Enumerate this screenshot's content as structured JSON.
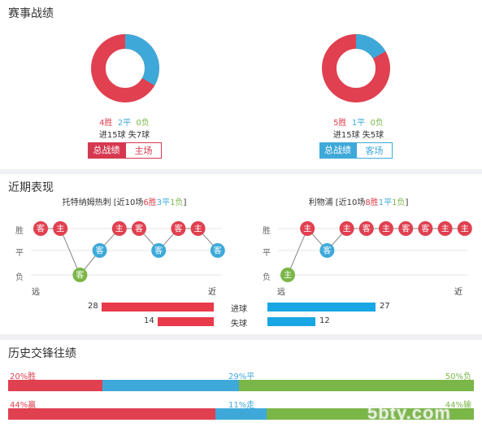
{
  "colors": {
    "win": "#e04050",
    "draw": "#3ea9d9",
    "loss": "#7ab648",
    "bar_red": "#e83a4a",
    "bar_blue": "#19a6e4",
    "tab_red": "#d63850",
    "tab_blue": "#3ea9d9"
  },
  "record": {
    "title": "赛事战绩",
    "left": {
      "win": "4胜",
      "draw": "2平",
      "loss": "0负",
      "goals": "进15球",
      "conceded": "失7球",
      "tab_active": "总战绩",
      "tab_other": "主场",
      "win_count": 4,
      "draw_count": 2,
      "loss_count": 0
    },
    "right": {
      "win": "5胜",
      "draw": "1平",
      "loss": "0负",
      "goals": "进15球",
      "conceded": "失5球",
      "tab_active": "总战绩",
      "tab_other": "客场",
      "win_count": 5,
      "draw_count": 1,
      "loss_count": 0
    }
  },
  "recent": {
    "title": "近期表现",
    "left_header": {
      "team": "托特纳姆热刺",
      "open": " [近10场",
      "win": "6胜",
      "draw": "3平",
      "loss": "1负",
      "close": "]"
    },
    "right_header": {
      "team": "利物浦",
      "open": " [近10场",
      "win": "8胜",
      "draw": "1平",
      "loss": "1负",
      "close": "]"
    },
    "y_labels": {
      "win": "胜",
      "draw": "平",
      "loss": "负"
    },
    "far": "远",
    "near": "近",
    "left_matches": [
      {
        "venue": "客",
        "result": "W"
      },
      {
        "venue": "主",
        "result": "W"
      },
      {
        "venue": "客",
        "result": "L"
      },
      {
        "venue": "客",
        "result": "D"
      },
      {
        "venue": "主",
        "result": "W"
      },
      {
        "venue": "客",
        "result": "W"
      },
      {
        "venue": "客",
        "result": "D"
      },
      {
        "venue": "客",
        "result": "W"
      },
      {
        "venue": "主",
        "result": "W"
      },
      {
        "venue": "客",
        "result": "D"
      }
    ],
    "right_matches": [
      {
        "venue": "主",
        "result": "L"
      },
      {
        "venue": "主",
        "result": "W"
      },
      {
        "venue": "客",
        "result": "D"
      },
      {
        "venue": "主",
        "result": "W"
      },
      {
        "venue": "客",
        "result": "W"
      },
      {
        "venue": "主",
        "result": "W"
      },
      {
        "venue": "客",
        "result": "W"
      },
      {
        "venue": "客",
        "result": "W"
      },
      {
        "venue": "主",
        "result": "W"
      },
      {
        "venue": "主",
        "result": "W"
      }
    ],
    "goals_label": "进球",
    "conceded_label": "失球",
    "left_goals": "28",
    "left_conceded": "14",
    "right_goals": "27",
    "right_conceded": "12",
    "left_goals_value": 28,
    "left_conceded_value": 14,
    "right_goals_value": 27,
    "right_conceded_value": 12
  },
  "h2h": {
    "title": "历史交锋往绩",
    "row1": {
      "win": "20%胜",
      "draw": "29%平",
      "loss": "50%负",
      "win_pct": 20,
      "draw_pct": 29,
      "loss_pct": 50
    },
    "row2": {
      "win": "44%赢",
      "draw": "11%走",
      "loss": "44%输",
      "win_pct": 44,
      "draw_pct": 11,
      "loss_pct": 44
    }
  },
  "watermark": "5bty.com"
}
